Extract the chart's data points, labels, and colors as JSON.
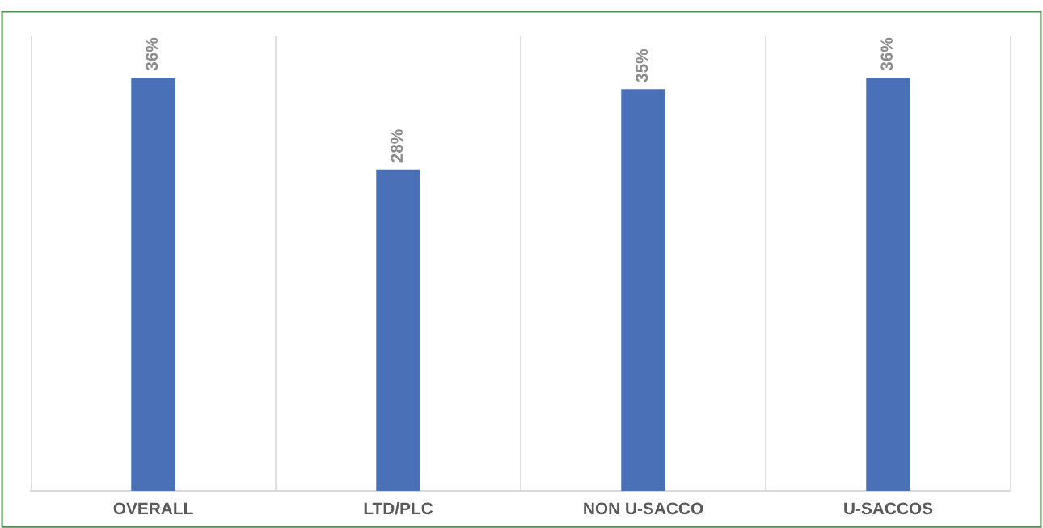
{
  "chart_data": {
    "type": "bar",
    "categories": [
      "OVERALL",
      "LTD/PLC",
      "NON U-SACCO",
      "U-SACCOS"
    ],
    "values": [
      36,
      28,
      35,
      36
    ],
    "value_labels": [
      "36%",
      "28%",
      "35%",
      "36%"
    ],
    "color": "#4a71b8",
    "grid": "x",
    "legend": false
  }
}
